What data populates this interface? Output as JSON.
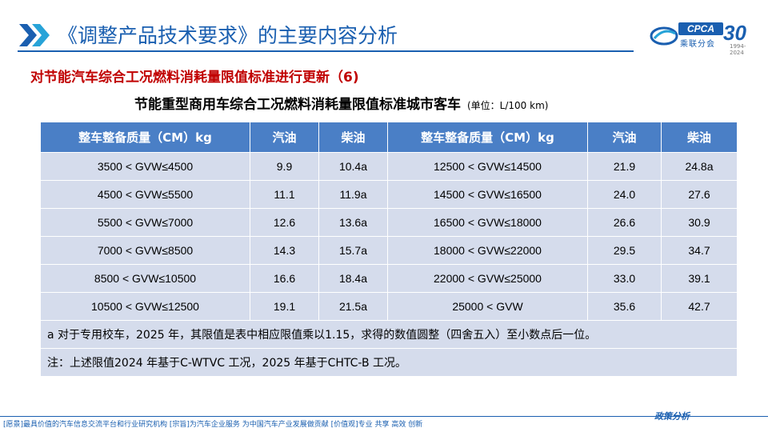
{
  "header": {
    "title": "《调整产品技术要求》的主要内容分析",
    "logo": {
      "brand": "CPCA",
      "cn_name": "乘联分会",
      "anniversary": "30",
      "anniversary_sub": "1994-2024"
    }
  },
  "subtitle": "对节能汽车综合工况燃料消耗量限值标准进行更新（6)",
  "table": {
    "title": "节能重型商用车综合工况燃料消耗量限值标准城市客车",
    "unit": "(单位：L/100 km)",
    "headers": [
      "整车整备质量（CM）kg",
      "汽油",
      "柴油",
      "整车整备质量（CM）kg",
      "汽油",
      "柴油"
    ],
    "rows": [
      [
        "3500 < GVW≤4500",
        "9.9",
        "10.4a",
        "12500 < GVW≤14500",
        "21.9",
        "24.8a"
      ],
      [
        "4500 < GVW≤5500",
        "11.1",
        "11.9a",
        "14500 < GVW≤16500",
        "24.0",
        "27.6"
      ],
      [
        "5500 < GVW≤7000",
        "12.6",
        "13.6a",
        "16500 < GVW≤18000",
        "26.6",
        "30.9"
      ],
      [
        "7000 < GVW≤8500",
        "14.3",
        "15.7a",
        "18000 < GVW≤22000",
        "29.5",
        "34.7"
      ],
      [
        "8500 < GVW≤10500",
        "16.6",
        "18.4a",
        "22000 < GVW≤25000",
        "33.0",
        "39.1"
      ],
      [
        "10500 < GVW≤12500",
        "19.1",
        "21.5a",
        "25000 < GVW",
        "35.6",
        "42.7"
      ]
    ],
    "note_a": "a 对于专用校车，2025 年，其限值是表中相应限值乘以1.15，求得的数值圆整（四舍五入）至小数点后一位。",
    "note_general": "注：上述限值2024 年基于C-WTVC 工况，2025 年基于CHTC-B 工况。"
  },
  "footer": {
    "text": "[愿景]最具价值的汽车信息交流平台和行业研究机构  [宗旨]为汽车企业服务  为中国汽车产业发展做贡献  [价值观]专业  共享  高效  创新",
    "brand": "政策分析"
  },
  "colors": {
    "accent": "#1a5fb0",
    "header_fill": "#4a7fc6",
    "cell_fill": "#d5dcec",
    "subtitle": "#c00000"
  }
}
